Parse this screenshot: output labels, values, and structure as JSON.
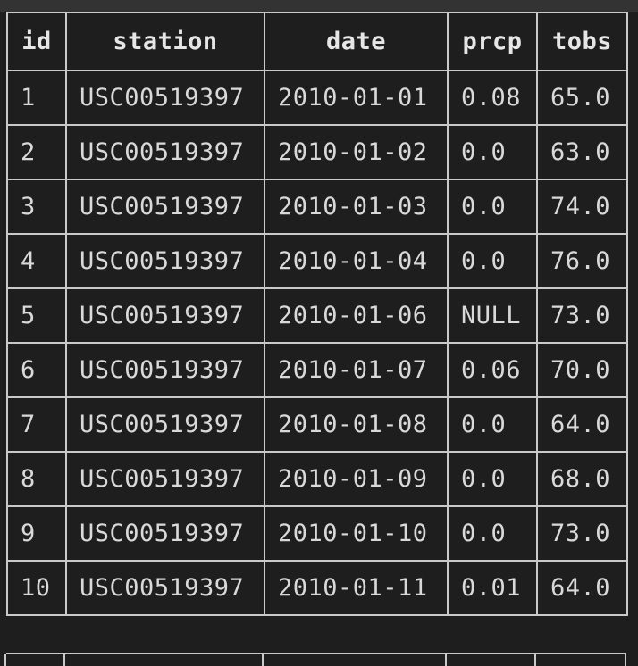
{
  "table": {
    "headers": [
      "id",
      "station",
      "date",
      "prcp",
      "tobs"
    ],
    "rows": [
      [
        "1",
        "USC00519397",
        "2010-01-01",
        "0.08",
        "65.0"
      ],
      [
        "2",
        "USC00519397",
        "2010-01-02",
        "0.0",
        "63.0"
      ],
      [
        "3",
        "USC00519397",
        "2010-01-03",
        "0.0",
        "74.0"
      ],
      [
        "4",
        "USC00519397",
        "2010-01-04",
        "0.0",
        "76.0"
      ],
      [
        "5",
        "USC00519397",
        "2010-01-06",
        "NULL",
        "73.0"
      ],
      [
        "6",
        "USC00519397",
        "2010-01-07",
        "0.06",
        "70.0"
      ],
      [
        "7",
        "USC00519397",
        "2010-01-08",
        "0.0",
        "64.0"
      ],
      [
        "8",
        "USC00519397",
        "2010-01-09",
        "0.0",
        "68.0"
      ],
      [
        "9",
        "USC00519397",
        "2010-01-10",
        "0.0",
        "73.0"
      ],
      [
        "10",
        "USC00519397",
        "2010-01-11",
        "0.01",
        "64.0"
      ]
    ]
  },
  "colors": {
    "background": "#1e1e1e",
    "border": "#c9c9c9",
    "text": "#d9d9d9",
    "topbar": "#333333"
  }
}
